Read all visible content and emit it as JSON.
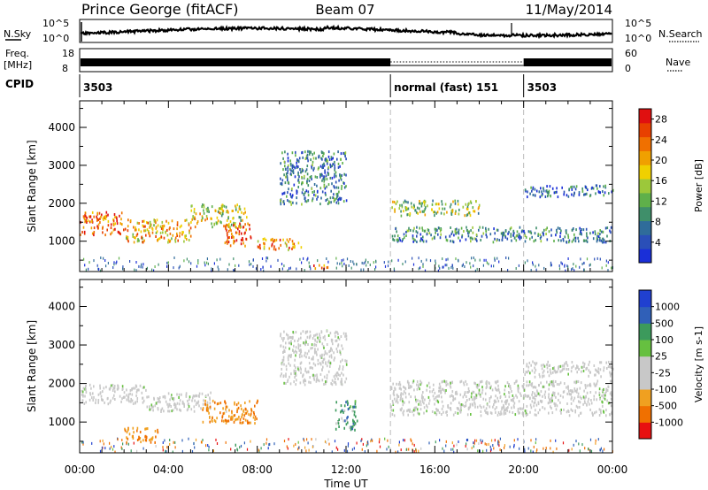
{
  "header": {
    "station": "Prince George (fitACF)",
    "beam": "Beam 07",
    "date": "11/May/2014"
  },
  "noise_panel": {
    "left_label": "N.Sky",
    "right_label": "N.Search",
    "left_ticks": [
      "10^5",
      "10^0"
    ],
    "right_ticks": [
      "10^5",
      "10^0"
    ]
  },
  "freq_panel": {
    "left_label_1": "Freq.",
    "left_label_2": "[MHz]",
    "left_ticks": [
      "18",
      "8"
    ],
    "right_label": "Nave",
    "right_ticks": [
      "60",
      "0"
    ]
  },
  "cpid_panel": {
    "label": "CPID",
    "segments": [
      {
        "label": "3503",
        "start_hour": 0,
        "end_hour": 14
      },
      {
        "label": "normal (fast) 151",
        "start_hour": 14,
        "end_hour": 20
      },
      {
        "label": "3503",
        "start_hour": 20,
        "end_hour": 24
      }
    ]
  },
  "chart_data": [
    {
      "type": "heatmap",
      "title": "Power",
      "xlabel": "Time UT",
      "ylabel": "Slant Range [km]",
      "xlim": [
        0,
        24
      ],
      "ylim": [
        200,
        4700
      ],
      "x_ticks": [
        "00:00",
        "04:00",
        "08:00",
        "12:00",
        "16:00",
        "20:00",
        "00:00"
      ],
      "y_ticks": [
        1000,
        2000,
        3000,
        4000
      ],
      "colorbar": {
        "label": "Power [dB]",
        "ticks": [
          4,
          8,
          12,
          16,
          20,
          24,
          28
        ],
        "range": [
          0,
          30
        ],
        "colors": [
          "#1a2fd8",
          "#2a4fb8",
          "#2f6c9a",
          "#3f8f6a",
          "#5fb04a",
          "#9cc83a",
          "#f0d000",
          "#f0a000",
          "#f07000",
          "#e84000",
          "#e01010"
        ]
      },
      "regions": [
        {
          "t0": 0,
          "t1": 2,
          "r0": 1200,
          "r1": 1800,
          "value": 24
        },
        {
          "t0": 2,
          "t1": 5,
          "r0": 1000,
          "r1": 1600,
          "value": 20
        },
        {
          "t0": 5,
          "t1": 7.5,
          "r0": 1400,
          "r1": 2000,
          "value": 16
        },
        {
          "t0": 6.5,
          "t1": 7.7,
          "r0": 900,
          "r1": 1500,
          "value": 26
        },
        {
          "t0": 8,
          "t1": 10,
          "r0": 800,
          "r1": 1100,
          "value": 22
        },
        {
          "t0": 10.5,
          "t1": 11.2,
          "r0": 300,
          "r1": 450,
          "value": 24
        },
        {
          "t0": 9,
          "t1": 12,
          "r0": 2000,
          "r1": 3400,
          "value": 8
        },
        {
          "t0": 14,
          "t1": 18,
          "r0": 1700,
          "r1": 2100,
          "value": 14
        },
        {
          "t0": 14,
          "t1": 24,
          "r0": 1000,
          "r1": 1400,
          "value": 8
        },
        {
          "t0": 20,
          "t1": 24,
          "r0": 2200,
          "r1": 2500,
          "value": 6
        }
      ]
    },
    {
      "type": "heatmap",
      "title": "Velocity",
      "xlabel": "Time UT",
      "ylabel": "Slant Range [km]",
      "xlim": [
        0,
        24
      ],
      "ylim": [
        200,
        4700
      ],
      "x_ticks": [
        "00:00",
        "04:00",
        "08:00",
        "12:00",
        "16:00",
        "20:00",
        "00:00"
      ],
      "y_ticks": [
        1000,
        2000,
        3000,
        4000
      ],
      "colorbar": {
        "label": "Velocity [m s-1]",
        "ticks": [
          1000,
          500,
          100,
          25,
          -25,
          -100,
          -500,
          -1000
        ],
        "colors": [
          "#2040d0",
          "#3060b8",
          "#3c9a5c",
          "#66c040",
          "#c8c8c8",
          "#c8c8c8",
          "#f0a020",
          "#f07000",
          "#e81010"
        ]
      },
      "regions": [
        {
          "t0": 0,
          "t1": 3,
          "r0": 1500,
          "r1": 2000,
          "value": 0
        },
        {
          "t0": 3,
          "t1": 6,
          "r0": 1300,
          "r1": 1800,
          "value": 0
        },
        {
          "t0": 5.5,
          "t1": 8,
          "r0": 1000,
          "r1": 1600,
          "value": -300
        },
        {
          "t0": 2,
          "t1": 3.5,
          "r0": 500,
          "r1": 900,
          "value": -300
        },
        {
          "t0": 9,
          "t1": 12,
          "r0": 2000,
          "r1": 3400,
          "value": 0
        },
        {
          "t0": 11.5,
          "t1": 12.5,
          "r0": 800,
          "r1": 1600,
          "value": 200
        },
        {
          "t0": 14,
          "t1": 24,
          "r0": 1200,
          "r1": 2100,
          "value": 0
        },
        {
          "t0": 20,
          "t1": 24,
          "r0": 2200,
          "r1": 2600,
          "value": 0
        }
      ]
    }
  ]
}
